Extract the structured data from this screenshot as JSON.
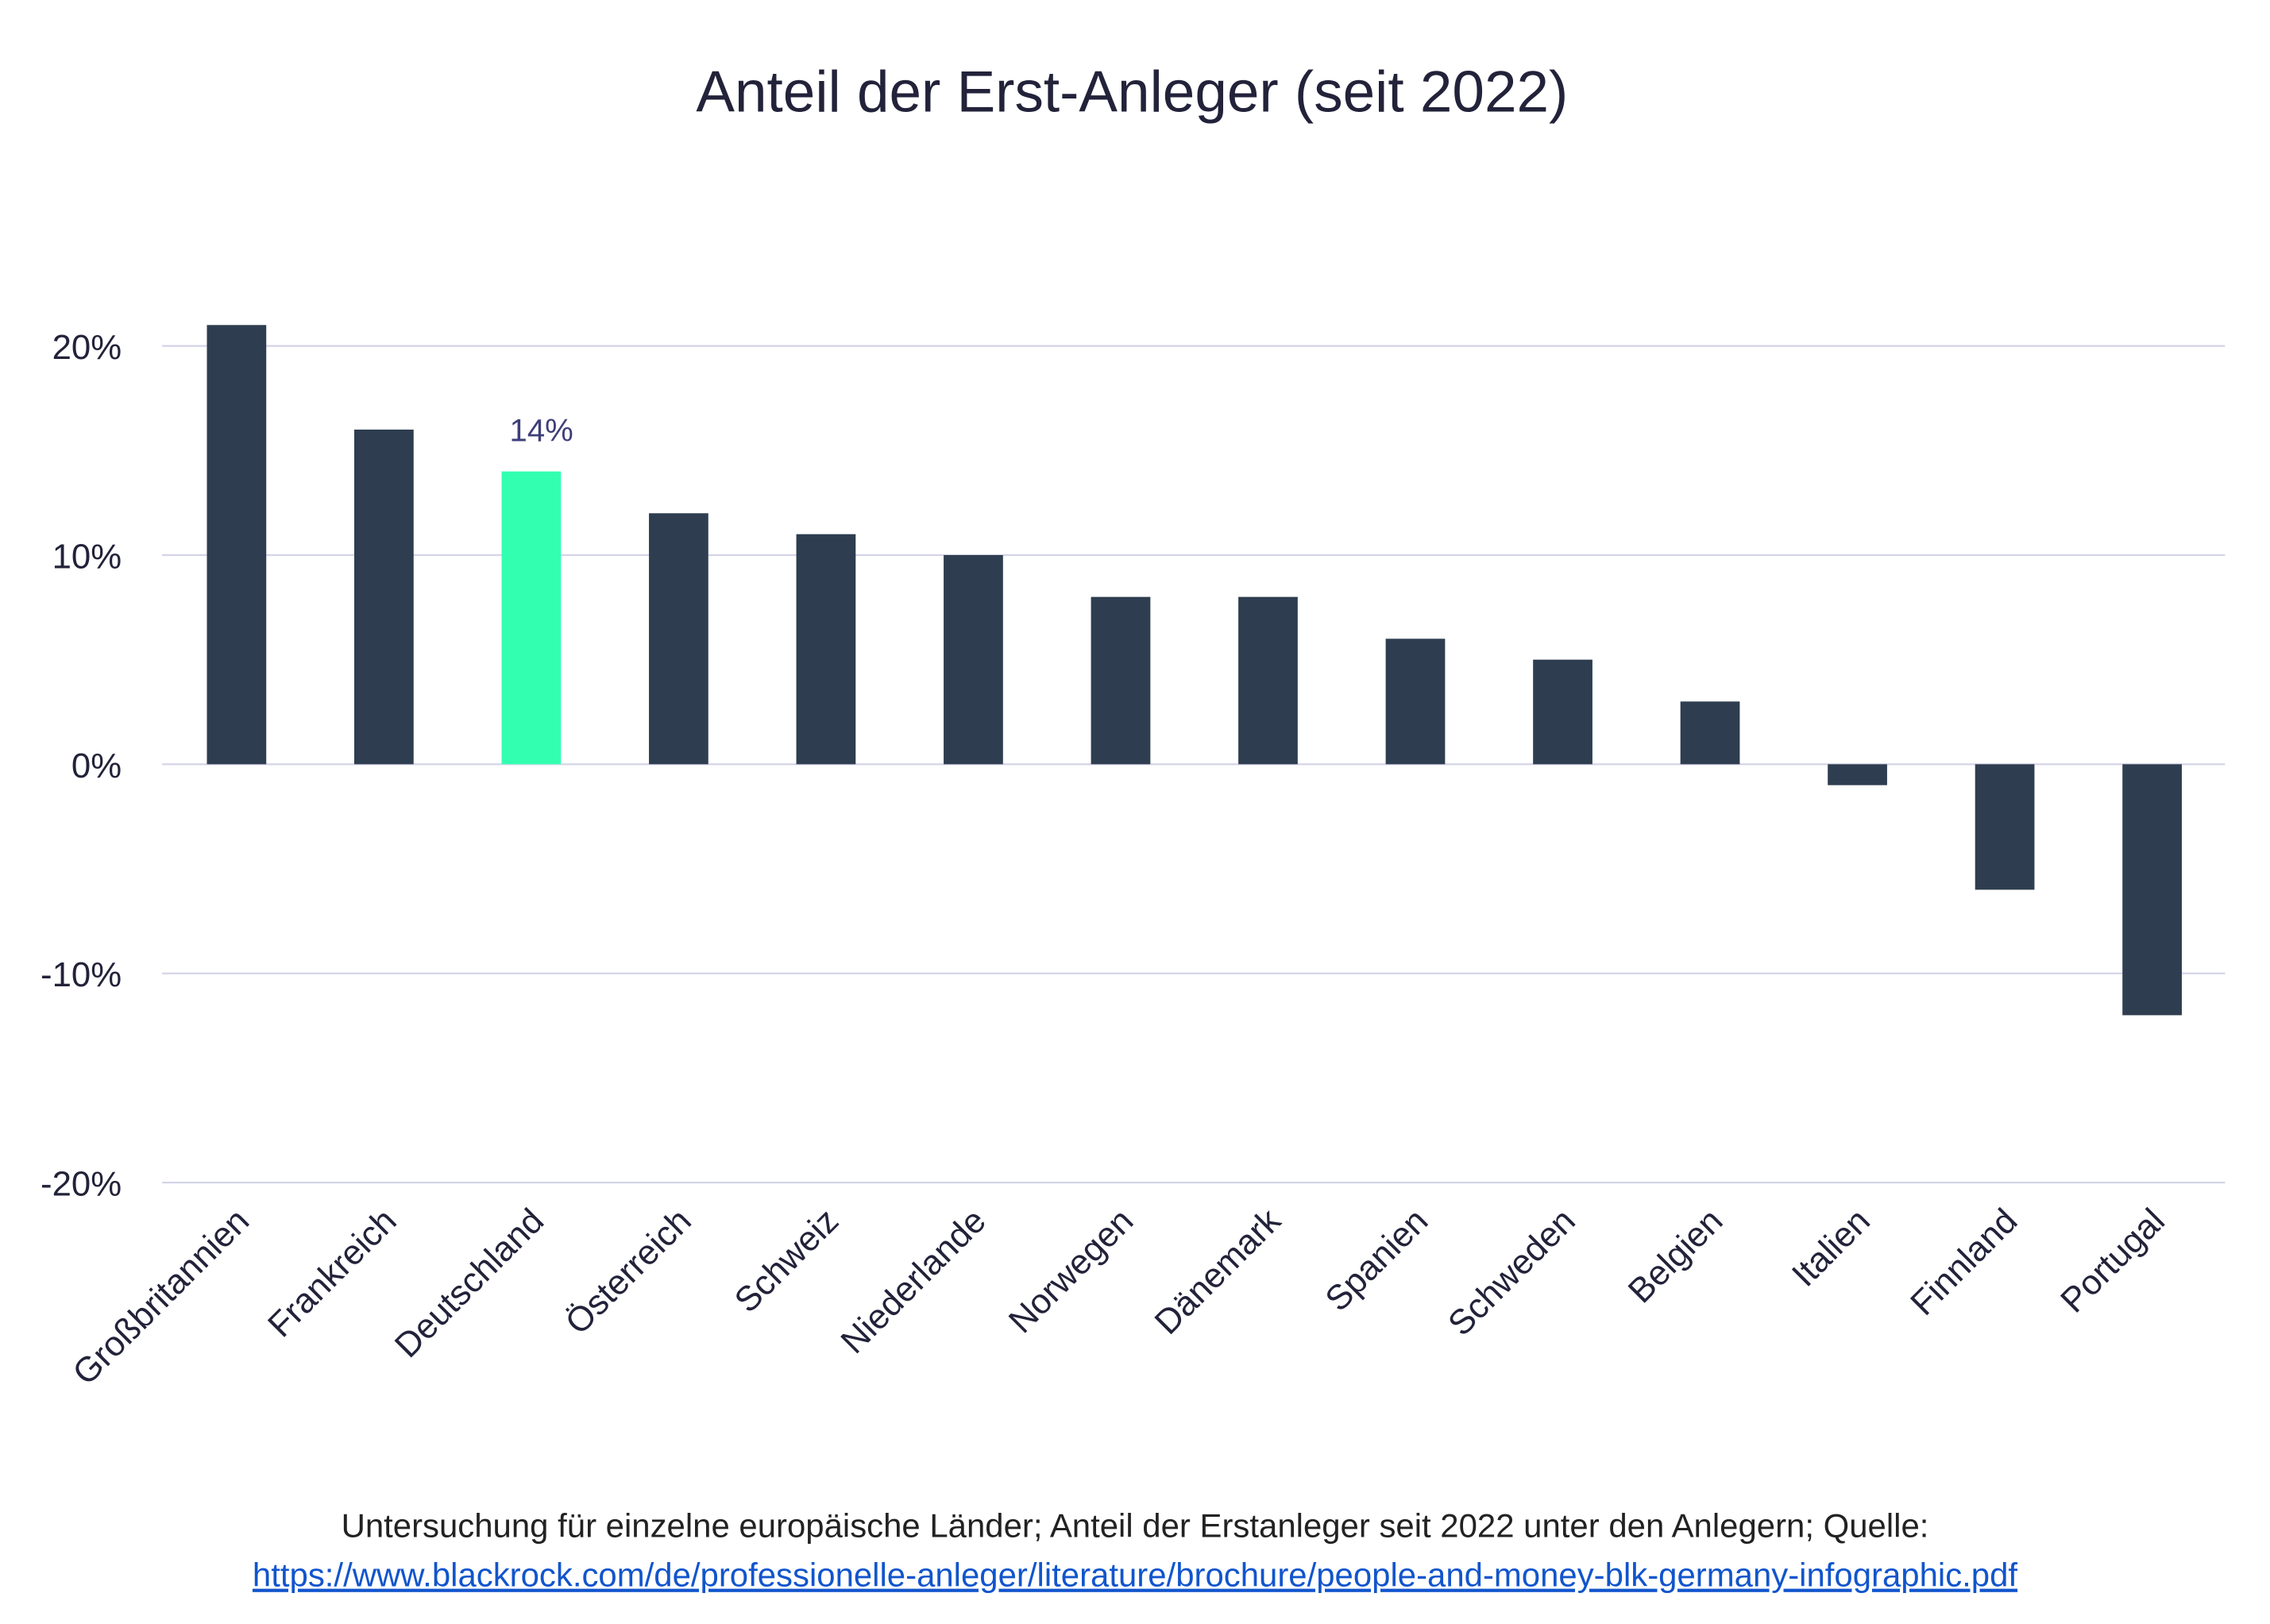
{
  "chart_data": {
    "type": "bar",
    "title": "Anteil der Erst-Anleger (seit 2022)",
    "xlabel": "",
    "ylabel": "",
    "categories": [
      "Großbritannien",
      "Frankreich",
      "Deutschland",
      "Österreich",
      "Schweiz",
      "Niederlande",
      "Norwegen",
      "Dänemark",
      "Spanien",
      "Schweden",
      "Belgien",
      "Italien",
      "Finnland",
      "Portugal"
    ],
    "values": [
      21,
      16,
      14,
      12,
      11,
      10,
      8,
      8,
      6,
      5,
      3,
      -1,
      -6,
      -12
    ],
    "ylim": [
      -20,
      20
    ],
    "yticks": [
      20,
      10,
      0,
      -10,
      -20
    ],
    "ytick_labels": [
      "20%",
      "10%",
      "0%",
      "-10%",
      "-20%"
    ],
    "grid": true,
    "bar_color": "#2e3d4f",
    "highlight_color": "#33ffb0",
    "highlight_index": 2,
    "data_labels": [
      {
        "index": 2,
        "text": "14%"
      }
    ],
    "gridline_color": "#d4d4e8"
  },
  "footer": {
    "note": "Untersuchung für einzelne europäische Länder; Anteil der Erstanleger seit 2022 unter den Anlegern; Quelle:",
    "link": "https://www.blackrock.com/de/professionelle-anleger/literature/brochure/people-and-money-blk-germany-infographic.pdf"
  }
}
